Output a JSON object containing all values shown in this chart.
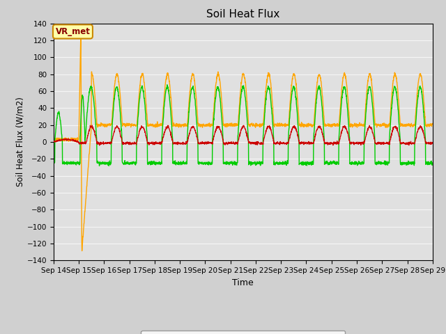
{
  "title": "Soil Heat Flux",
  "xlabel": "Time",
  "ylabel": "Soil Heat Flux (W/m2)",
  "ylim": [
    -140,
    140
  ],
  "yticks": [
    -140,
    -120,
    -100,
    -80,
    -60,
    -40,
    -20,
    0,
    20,
    40,
    60,
    80,
    100,
    120,
    140
  ],
  "date_labels": [
    "Sep 14",
    "Sep 15",
    "Sep 16",
    "Sep 17",
    "Sep 18",
    "Sep 19",
    "Sep 20",
    "Sep 21",
    "Sep 22",
    "Sep 23",
    "Sep 24",
    "Sep 25",
    "Sep 26",
    "Sep 27",
    "Sep 28",
    "Sep 29"
  ],
  "colors": {
    "SHF 1": "#cc0000",
    "SHF 2": "#ffa500",
    "SHF 3": "#00cc00"
  },
  "plot_bg": "#e0e0e0",
  "fig_bg": "#d0d0d0",
  "grid_color": "#f5f5f5",
  "annotation_text": "VR_met",
  "annotation_bg": "#ffffaa",
  "annotation_edge": "#cc8800"
}
